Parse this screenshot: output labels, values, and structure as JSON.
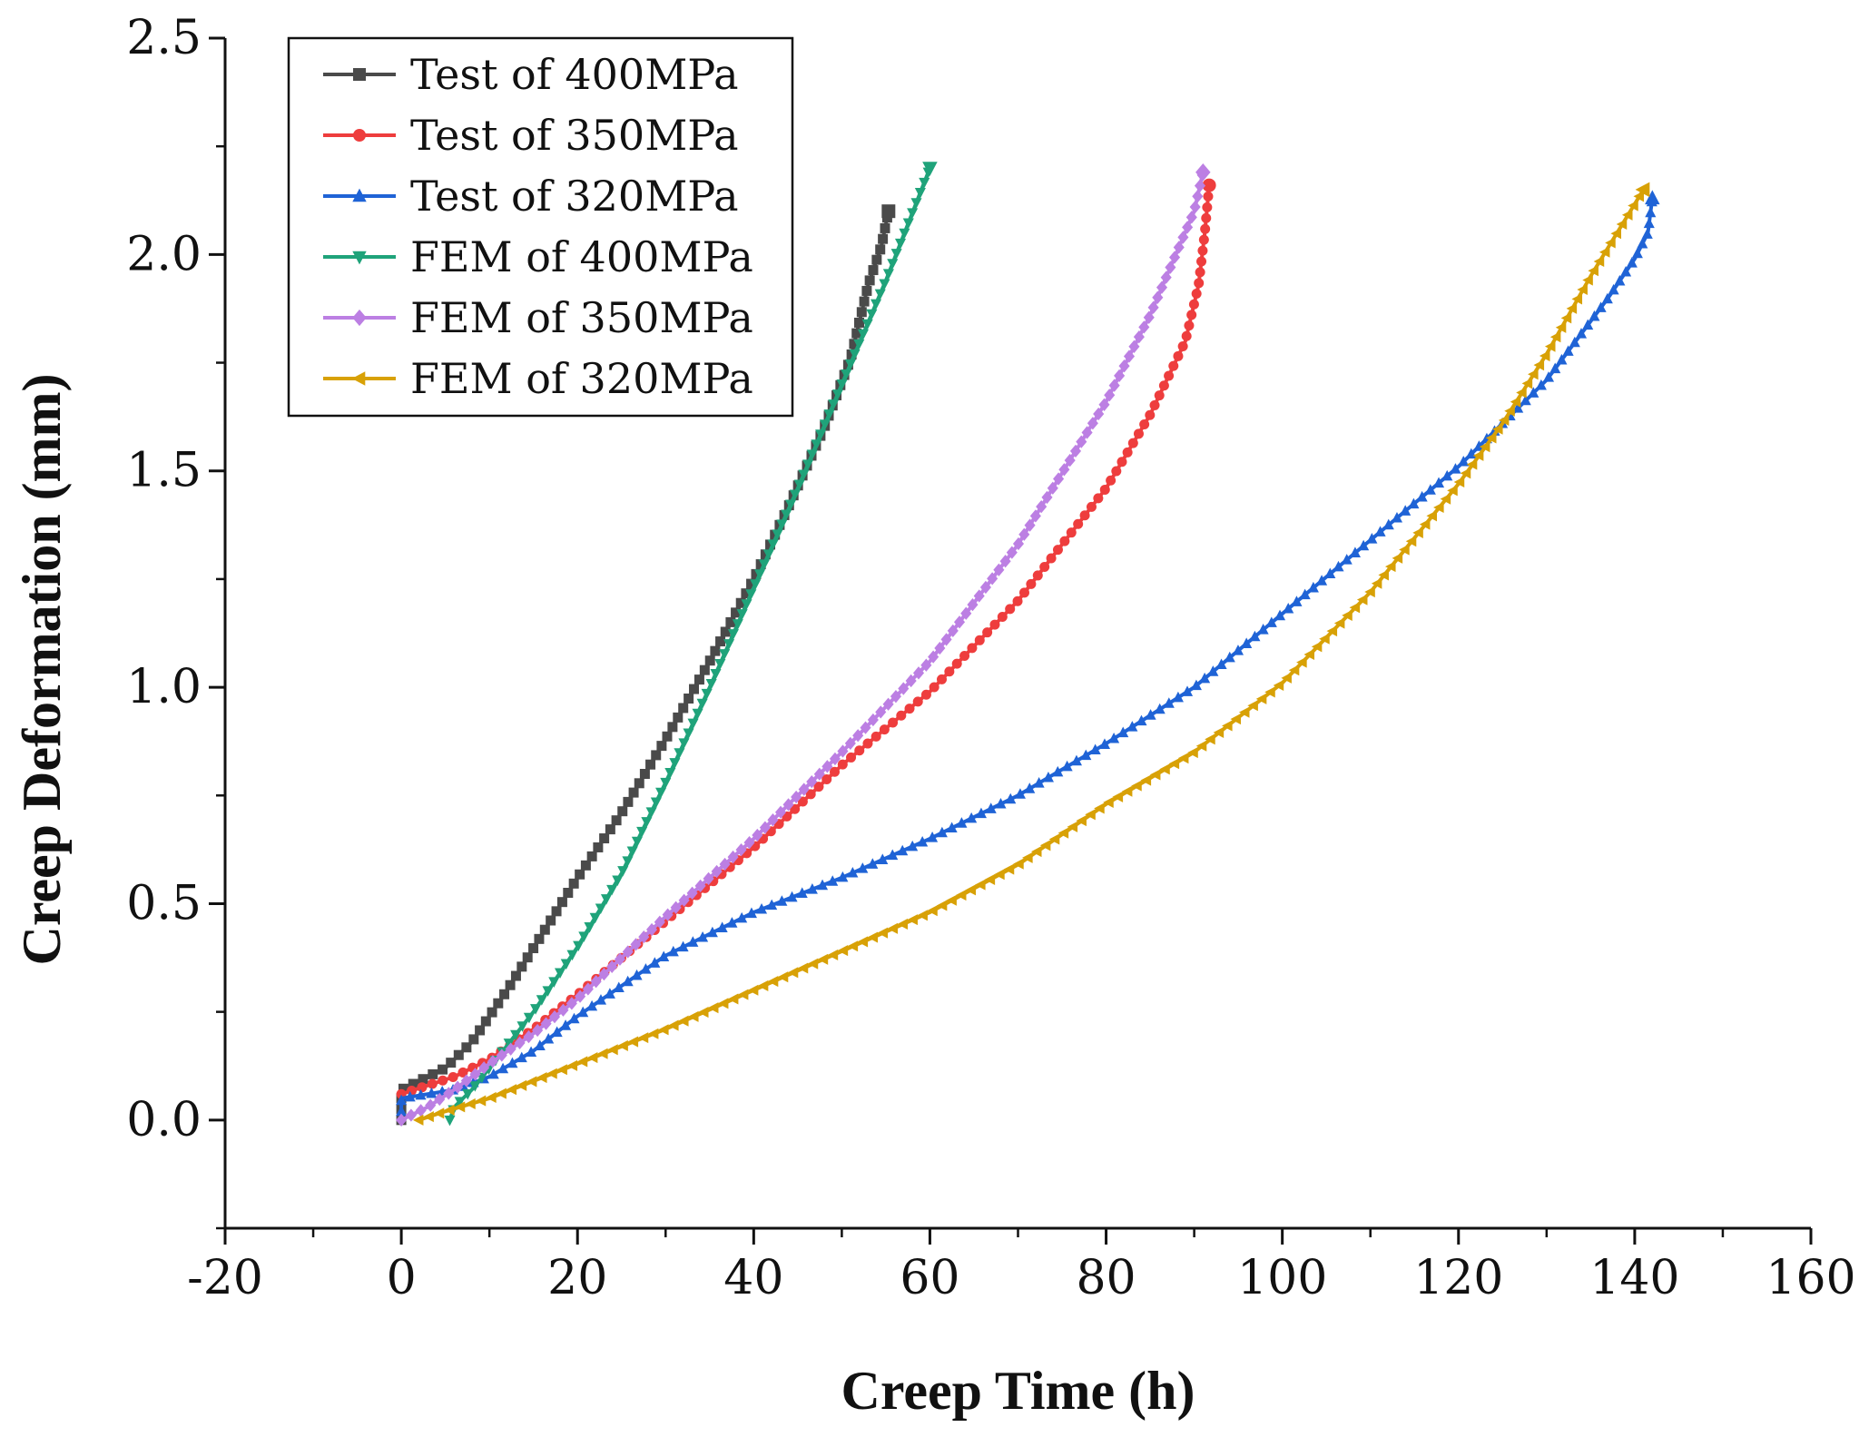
{
  "chart_data": {
    "type": "line",
    "xlabel": "Creep Time (h)",
    "ylabel": "Creep Deformation (mm)",
    "xlim": [
      -20,
      160
    ],
    "ylim": [
      -0.25,
      2.5
    ],
    "xticks": [
      -20,
      0,
      20,
      40,
      60,
      80,
      100,
      120,
      140,
      160
    ],
    "xtick_labels": [
      "-20",
      "0",
      "20",
      "40",
      "60",
      "80",
      "100",
      "120",
      "140",
      "160"
    ],
    "yticks": [
      0.0,
      0.5,
      1.0,
      1.5,
      2.0,
      2.5
    ],
    "ytick_labels": [
      "0.0",
      "0.5",
      "1.0",
      "1.5",
      "2.0",
      "2.5"
    ],
    "legend_position": "top-left",
    "grid": false,
    "series": [
      {
        "name": "Test of 400MPa",
        "color": "#4a4a4a",
        "marker": "square",
        "points": [
          [
            0,
            0.0
          ],
          [
            0,
            0.07
          ],
          [
            2,
            0.09
          ],
          [
            5,
            0.12
          ],
          [
            8,
            0.18
          ],
          [
            12,
            0.3
          ],
          [
            16,
            0.43
          ],
          [
            20,
            0.56
          ],
          [
            25,
            0.71
          ],
          [
            30,
            0.88
          ],
          [
            35,
            1.06
          ],
          [
            40,
            1.25
          ],
          [
            44,
            1.42
          ],
          [
            48,
            1.6
          ],
          [
            51,
            1.76
          ],
          [
            53,
            1.93
          ],
          [
            54.5,
            2.02
          ],
          [
            55.3,
            2.1
          ]
        ]
      },
      {
        "name": "Test of 350MPa",
        "color": "#ee3d3d",
        "marker": "circle",
        "points": [
          [
            0,
            0.06
          ],
          [
            3,
            0.08
          ],
          [
            6,
            0.1
          ],
          [
            10,
            0.14
          ],
          [
            15,
            0.21
          ],
          [
            20,
            0.29
          ],
          [
            30,
            0.46
          ],
          [
            40,
            0.63
          ],
          [
            50,
            0.82
          ],
          [
            60,
            0.99
          ],
          [
            70,
            1.2
          ],
          [
            80,
            1.46
          ],
          [
            85,
            1.63
          ],
          [
            89,
            1.8
          ],
          [
            90.5,
            1.93
          ],
          [
            91.2,
            2.05
          ],
          [
            91.7,
            2.16
          ]
        ]
      },
      {
        "name": "Test of 320MPa",
        "color": "#1f63d6",
        "marker": "triangle-up",
        "points": [
          [
            0,
            0.02
          ],
          [
            0,
            0.05
          ],
          [
            3,
            0.06
          ],
          [
            6,
            0.07
          ],
          [
            10,
            0.1
          ],
          [
            15,
            0.16
          ],
          [
            20,
            0.24
          ],
          [
            30,
            0.38
          ],
          [
            40,
            0.48
          ],
          [
            50,
            0.56
          ],
          [
            60,
            0.65
          ],
          [
            70,
            0.75
          ],
          [
            80,
            0.87
          ],
          [
            90,
            1.0
          ],
          [
            100,
            1.17
          ],
          [
            110,
            1.34
          ],
          [
            120,
            1.51
          ],
          [
            130,
            1.71
          ],
          [
            137,
            1.9
          ],
          [
            140,
            1.99
          ],
          [
            141.5,
            2.05
          ],
          [
            142,
            2.13
          ]
        ]
      },
      {
        "name": "FEM of 400MPa",
        "color": "#1fa37a",
        "marker": "triangle-down",
        "points": [
          [
            5.5,
            0.0
          ],
          [
            6,
            0.03
          ],
          [
            8,
            0.07
          ],
          [
            10,
            0.12
          ],
          [
            15,
            0.25
          ],
          [
            20,
            0.4
          ],
          [
            25,
            0.57
          ],
          [
            30,
            0.78
          ],
          [
            35,
            1.0
          ],
          [
            40,
            1.23
          ],
          [
            45,
            1.46
          ],
          [
            50,
            1.7
          ],
          [
            55,
            1.94
          ],
          [
            60,
            2.2
          ]
        ]
      },
      {
        "name": "FEM of 350MPa",
        "color": "#bc7fe3",
        "marker": "diamond",
        "points": [
          [
            0,
            0.0
          ],
          [
            3,
            0.03
          ],
          [
            6,
            0.07
          ],
          [
            10,
            0.13
          ],
          [
            15,
            0.2
          ],
          [
            20,
            0.28
          ],
          [
            30,
            0.47
          ],
          [
            40,
            0.65
          ],
          [
            50,
            0.85
          ],
          [
            60,
            1.06
          ],
          [
            70,
            1.33
          ],
          [
            80,
            1.66
          ],
          [
            85,
            1.86
          ],
          [
            90,
            2.1
          ],
          [
            91,
            2.19
          ]
        ]
      },
      {
        "name": "FEM of 320MPa",
        "color": "#d8a106",
        "marker": "triangle-left",
        "points": [
          [
            2,
            0.0
          ],
          [
            5,
            0.02
          ],
          [
            10,
            0.05
          ],
          [
            20,
            0.13
          ],
          [
            30,
            0.21
          ],
          [
            40,
            0.3
          ],
          [
            50,
            0.39
          ],
          [
            60,
            0.48
          ],
          [
            70,
            0.59
          ],
          [
            80,
            0.73
          ],
          [
            90,
            0.85
          ],
          [
            100,
            1.01
          ],
          [
            110,
            1.22
          ],
          [
            120,
            1.47
          ],
          [
            125,
            1.61
          ],
          [
            130,
            1.77
          ],
          [
            135,
            1.95
          ],
          [
            141,
            2.15
          ]
        ]
      }
    ]
  }
}
